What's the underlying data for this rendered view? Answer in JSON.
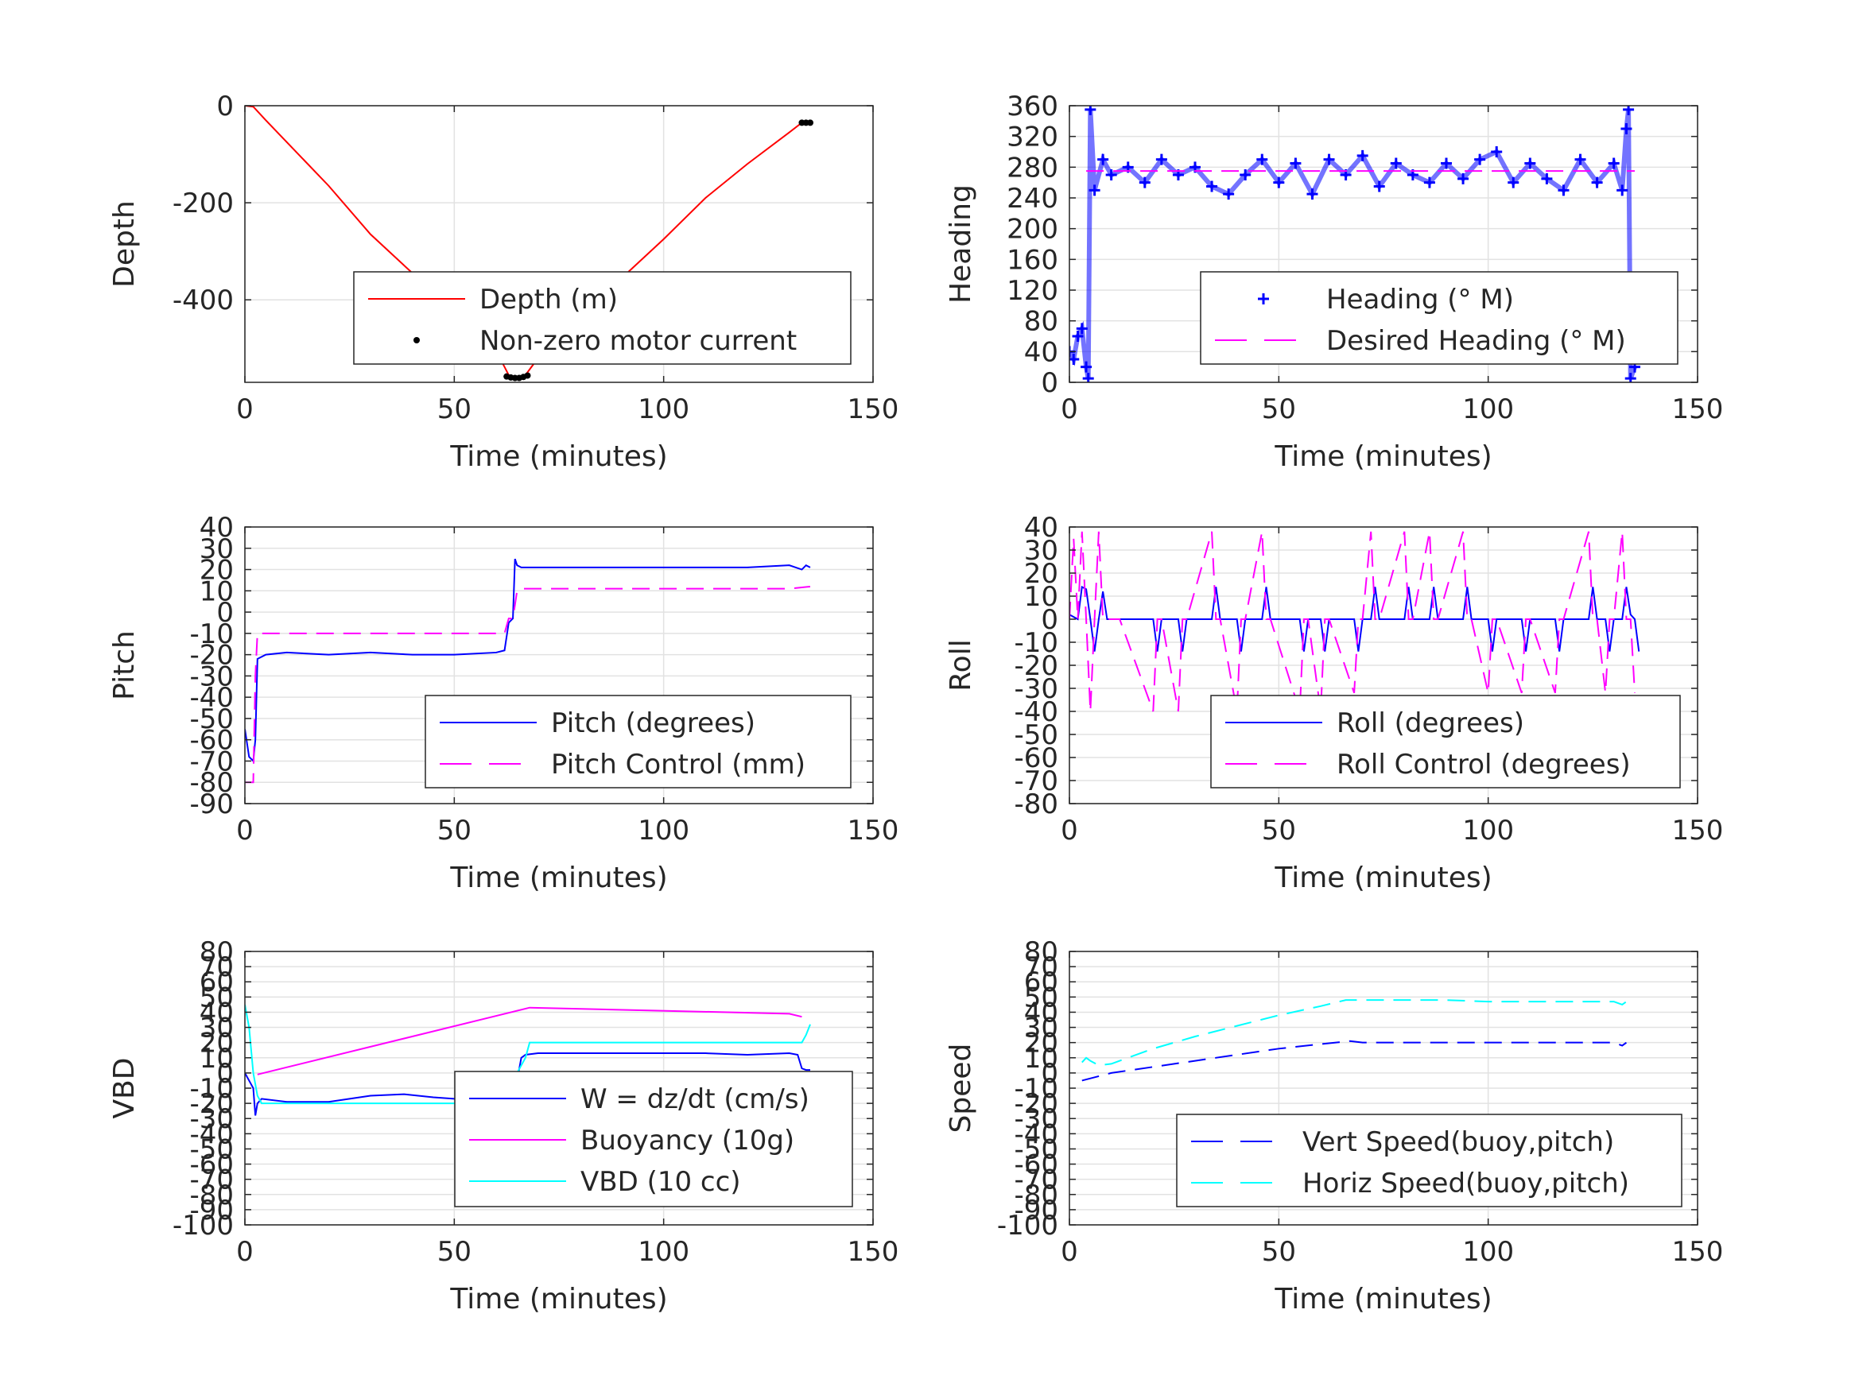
{
  "chart_data": [
    {
      "type": "line",
      "xlabel": "Time (minutes)",
      "ylabel": "Depth",
      "xlim": [
        0,
        150
      ],
      "ylim": [
        -570,
        0
      ],
      "xticks": [
        0,
        50,
        100,
        150
      ],
      "yticks": [
        0,
        -200,
        -400
      ],
      "grid": true,
      "legend_position": "bottom-right",
      "series": [
        {
          "name": "Depth (m)",
          "style": "solid",
          "color": "#ff0000",
          "x": [
            0,
            2,
            5,
            10,
            20,
            30,
            40,
            50,
            60,
            63,
            65,
            67,
            70,
            80,
            90,
            100,
            110,
            120,
            130,
            133,
            135
          ],
          "y": [
            0,
            -2,
            -30,
            -75,
            -165,
            -265,
            -345,
            -420,
            -505,
            -555,
            -560,
            -555,
            -520,
            -440,
            -355,
            -275,
            -190,
            -120,
            -55,
            -35,
            -35
          ]
        },
        {
          "name": "Non-zero motor current",
          "style": "dots",
          "color": "#000000",
          "x": [
            62.5,
            63.5,
            64.5,
            65.5,
            66.5,
            67.5,
            133,
            134,
            135
          ],
          "y": [
            -558,
            -560,
            -561,
            -561,
            -559,
            -556,
            -35,
            -35,
            -35
          ]
        }
      ]
    },
    {
      "type": "line",
      "xlabel": "Time (minutes)",
      "ylabel": "Heading",
      "xlim": [
        0,
        150
      ],
      "ylim": [
        0,
        360
      ],
      "xticks": [
        0,
        50,
        100,
        150
      ],
      "yticks": [
        0,
        40,
        80,
        120,
        160,
        200,
        240,
        280,
        320,
        360
      ],
      "grid": true,
      "legend_position": "bottom-right",
      "series": [
        {
          "name": "Heading (° M)",
          "style": "plus",
          "color": "#0000ff",
          "x": [
            0,
            1,
            2,
            3,
            4,
            4.5,
            5,
            6,
            8,
            10,
            14,
            18,
            22,
            26,
            30,
            34,
            38,
            42,
            46,
            50,
            54,
            58,
            62,
            66,
            70,
            74,
            78,
            82,
            86,
            90,
            94,
            98,
            102,
            106,
            110,
            114,
            118,
            122,
            126,
            130,
            132,
            133,
            133.5,
            134,
            135
          ],
          "y": [
            40,
            30,
            60,
            70,
            20,
            5,
            355,
            250,
            290,
            270,
            280,
            260,
            290,
            270,
            280,
            255,
            245,
            270,
            290,
            260,
            285,
            245,
            290,
            270,
            295,
            255,
            285,
            270,
            260,
            285,
            265,
            290,
            300,
            260,
            285,
            265,
            250,
            290,
            260,
            285,
            250,
            330,
            355,
            5,
            20
          ]
        },
        {
          "name": "Desired Heading (° M)",
          "style": "dashed",
          "color": "#ff00ff",
          "x": [
            4,
            135
          ],
          "y": [
            275,
            275
          ]
        }
      ]
    },
    {
      "type": "line",
      "xlabel": "Time (minutes)",
      "ylabel": "Pitch",
      "xlim": [
        0,
        150
      ],
      "ylim": [
        -90,
        40
      ],
      "xticks": [
        0,
        50,
        100,
        150
      ],
      "yticks": [
        -90,
        -80,
        -70,
        -60,
        -50,
        -40,
        -30,
        -20,
        -10,
        0,
        10,
        20,
        30,
        40
      ],
      "grid": true,
      "legend_position": "bottom-right",
      "series": [
        {
          "name": "Pitch (degrees)",
          "style": "solid",
          "color": "#0000ff",
          "x": [
            0,
            1,
            2,
            2.5,
            3,
            5,
            10,
            20,
            30,
            40,
            50,
            60,
            62,
            63,
            64,
            64.5,
            65,
            66,
            70,
            80,
            90,
            100,
            110,
            120,
            130,
            133,
            134,
            135
          ],
          "y": [
            -55,
            -68,
            -70,
            -60,
            -22,
            -20,
            -19,
            -20,
            -19,
            -20,
            -20,
            -19,
            -18,
            -5,
            -3,
            25,
            22,
            21,
            21,
            21,
            21,
            21,
            21,
            21,
            22,
            20,
            22,
            21
          ]
        },
        {
          "name": "Pitch Control (mm)",
          "style": "dashed",
          "color": "#ff00ff",
          "x": [
            0,
            2,
            2.5,
            3,
            10,
            30,
            50,
            60,
            62,
            63,
            64,
            65,
            66,
            70,
            100,
            130,
            135
          ],
          "y": [
            -80,
            -80,
            -30,
            -10,
            -10,
            -10,
            -10,
            -10,
            -10,
            -3,
            -3,
            10,
            11,
            11,
            11,
            11,
            12
          ]
        }
      ]
    },
    {
      "type": "line",
      "xlabel": "Time (minutes)",
      "ylabel": "Roll",
      "xlim": [
        0,
        150
      ],
      "ylim": [
        -80,
        40
      ],
      "xticks": [
        0,
        50,
        100,
        150
      ],
      "yticks": [
        -80,
        -70,
        -60,
        -50,
        -40,
        -30,
        -20,
        -10,
        0,
        10,
        20,
        30,
        40
      ],
      "grid": true,
      "legend_position": "bottom-right",
      "series": [
        {
          "name": "Roll (degrees)",
          "style": "solid",
          "color": "#0000ff",
          "x": [
            0,
            2,
            3,
            4,
            5,
            6,
            7,
            8,
            9,
            10,
            11,
            12,
            20,
            21,
            22,
            26,
            27,
            28,
            34,
            35,
            36,
            40,
            41,
            42,
            46,
            47,
            48,
            55,
            56,
            57,
            60,
            61,
            62,
            68,
            69,
            70,
            72,
            73,
            74,
            80,
            81,
            82,
            86,
            87,
            88,
            94,
            95,
            96,
            100,
            101,
            102,
            108,
            109,
            110,
            116,
            117,
            118,
            124,
            125,
            126,
            128,
            129,
            130,
            132,
            133,
            134,
            135,
            136
          ],
          "y": [
            2,
            0,
            14,
            13,
            0,
            -14,
            0,
            12,
            0,
            0,
            0,
            0,
            0,
            -14,
            0,
            0,
            -14,
            0,
            0,
            14,
            0,
            0,
            -14,
            0,
            0,
            14,
            0,
            0,
            -14,
            0,
            0,
            -14,
            0,
            0,
            -14,
            0,
            0,
            14,
            0,
            0,
            14,
            0,
            0,
            14,
            0,
            0,
            14,
            0,
            0,
            -14,
            0,
            0,
            -14,
            0,
            0,
            -14,
            0,
            0,
            14,
            0,
            0,
            -14,
            0,
            0,
            14,
            2,
            0,
            -14
          ]
        },
        {
          "name": "Roll Control (degrees)",
          "style": "dashed",
          "color": "#ff00ff",
          "x": [
            0,
            1,
            2,
            3,
            4,
            5,
            6,
            7,
            8,
            9,
            10,
            11,
            12,
            20,
            21,
            22,
            26,
            27,
            28,
            34,
            35,
            36,
            40,
            41,
            42,
            46,
            47,
            48,
            55,
            56,
            57,
            60,
            61,
            62,
            68,
            69,
            70,
            72,
            73,
            74,
            80,
            81,
            82,
            86,
            87,
            88,
            94,
            95,
            96,
            100,
            101,
            102,
            108,
            109,
            110,
            116,
            117,
            118,
            124,
            125,
            126,
            128,
            129,
            130,
            132,
            133,
            134,
            135
          ],
          "y": [
            0,
            35,
            0,
            38,
            0,
            -40,
            0,
            38,
            0,
            0,
            0,
            0,
            0,
            -40,
            0,
            0,
            -40,
            0,
            0,
            38,
            0,
            0,
            -40,
            0,
            0,
            38,
            0,
            0,
            -40,
            0,
            0,
            -40,
            0,
            0,
            -32,
            0,
            0,
            38,
            0,
            0,
            38,
            0,
            0,
            38,
            0,
            0,
            38,
            0,
            0,
            -32,
            0,
            0,
            -32,
            0,
            0,
            -32,
            0,
            0,
            38,
            0,
            0,
            -32,
            0,
            0,
            38,
            0,
            0,
            -32
          ]
        }
      ]
    },
    {
      "type": "line",
      "xlabel": "Time (minutes)",
      "ylabel": "VBD",
      "xlim": [
        0,
        150
      ],
      "ylim": [
        -100,
        80
      ],
      "xticks": [
        0,
        50,
        100,
        150
      ],
      "yticks": [
        -100,
        -90,
        -80,
        -70,
        -60,
        -50,
        -40,
        -30,
        -20,
        -10,
        0,
        10,
        20,
        30,
        40,
        50,
        60,
        70,
        80
      ],
      "grid": true,
      "legend_position": "bottom-right",
      "series": [
        {
          "name": "W = dz/dt (cm/s)",
          "style": "solid",
          "color": "#0000ff",
          "x": [
            0,
            1,
            2,
            2.5,
            3,
            4,
            10,
            20,
            30,
            38,
            45,
            50,
            60,
            62,
            63,
            65,
            66,
            67,
            70,
            80,
            90,
            100,
            110,
            120,
            130,
            132,
            133,
            134,
            135
          ],
          "y": [
            0,
            -5,
            -10,
            -28,
            -20,
            -17,
            -19,
            -19,
            -15,
            -14,
            -16,
            -17,
            -16,
            -15,
            -14,
            -5,
            10,
            12,
            13,
            13,
            13,
            13,
            13,
            12,
            13,
            12,
            3,
            2,
            2
          ]
        },
        {
          "name": "Buoyancy (10g)",
          "style": "solid",
          "color": "#ff00ff",
          "x": [
            3,
            68,
            130,
            133
          ],
          "y": [
            -1,
            43,
            39,
            37
          ]
        },
        {
          "name": "VBD (10 cc)",
          "style": "solid",
          "color": "#00ffff",
          "x": [
            0,
            1,
            2,
            3,
            4,
            10,
            30,
            50,
            62,
            63,
            65,
            67,
            68,
            70,
            80,
            100,
            120,
            133,
            134,
            135
          ],
          "y": [
            45,
            30,
            0,
            -15,
            -20,
            -20,
            -20,
            -20,
            -20,
            -15,
            0,
            10,
            20,
            20,
            20,
            20,
            20,
            20,
            25,
            32
          ]
        }
      ]
    },
    {
      "type": "line",
      "xlabel": "Time (minutes)",
      "ylabel": "Speed",
      "xlim": [
        0,
        150
      ],
      "ylim": [
        -100,
        80
      ],
      "xticks": [
        0,
        50,
        100,
        150
      ],
      "yticks": [
        -100,
        -90,
        -80,
        -70,
        -60,
        -50,
        -40,
        -30,
        -20,
        -10,
        0,
        10,
        20,
        30,
        40,
        50,
        60,
        70,
        80
      ],
      "grid": true,
      "legend_position": "bottom-right",
      "series": [
        {
          "name": "Vert Speed(buoy,pitch)",
          "style": "dashed",
          "color": "#0000ff",
          "x": [
            3,
            10,
            20,
            30,
            40,
            50,
            60,
            67,
            70,
            80,
            90,
            100,
            110,
            120,
            130,
            132,
            133
          ],
          "y": [
            -5,
            0,
            4,
            8,
            12,
            16,
            19,
            21,
            20,
            20,
            20,
            20,
            20,
            20,
            20,
            18,
            20
          ]
        },
        {
          "name": "Horiz Speed(buoy,pitch)",
          "style": "dashed",
          "color": "#00ffff",
          "x": [
            3,
            4,
            5,
            7,
            10,
            20,
            30,
            40,
            50,
            60,
            66,
            70,
            80,
            90,
            100,
            110,
            120,
            130,
            132,
            133
          ],
          "y": [
            7,
            10,
            8,
            5,
            6,
            16,
            24,
            31,
            38,
            44,
            48,
            48,
            48,
            48,
            47,
            47,
            47,
            47,
            45,
            47
          ]
        }
      ]
    }
  ]
}
